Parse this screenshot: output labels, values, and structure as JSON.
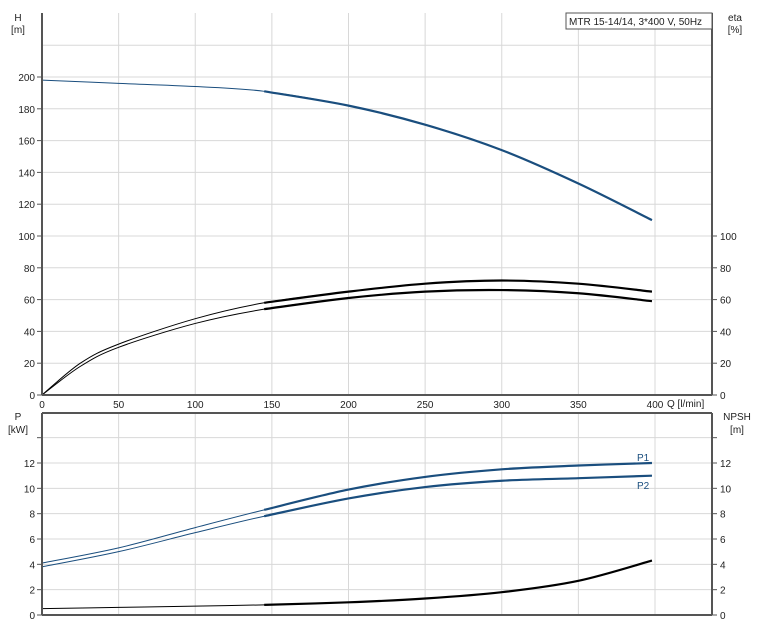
{
  "title_box": "MTR 15-14/14, 3*400 V, 50Hz",
  "colors": {
    "blue": "#1a4e7e",
    "black": "#000000",
    "grid": "#d8d8d8"
  },
  "chart_data": [
    {
      "type": "line",
      "name": "head-efficiency",
      "xlabel": "Q [l/min]",
      "x_ticks": [
        "0",
        "50",
        "100",
        "150",
        "200",
        "250",
        "300",
        "350",
        "400"
      ],
      "xlim": [
        0,
        437
      ],
      "ylabel_left": {
        "name": "H",
        "unit": "[m]"
      },
      "ylabel_right": {
        "name": "eta",
        "unit": "[%]"
      },
      "ylim_left": [
        0,
        240
      ],
      "y_ticks_left": [
        "0",
        "20",
        "40",
        "60",
        "80",
        "100",
        "120",
        "140",
        "160",
        "180",
        "200"
      ],
      "y_ticks_right": [
        "0",
        "20",
        "40",
        "60",
        "80",
        "100"
      ],
      "grid": true,
      "operating_range_start": 145,
      "series": [
        {
          "axis": "left",
          "color": "#1a4e7e",
          "x": [
            0,
            50,
            100,
            145,
            200,
            250,
            300,
            350,
            398
          ],
          "y": [
            198,
            196,
            194,
            191,
            182,
            170,
            154,
            133,
            110
          ]
        },
        {
          "axis": "right",
          "color": "#000000",
          "x": [
            0,
            25,
            50,
            100,
            145,
            200,
            250,
            300,
            350,
            398
          ],
          "y": [
            0,
            20,
            32,
            48,
            58,
            65,
            70,
            72,
            70,
            65
          ]
        },
        {
          "axis": "right",
          "color": "#000000",
          "x": [
            0,
            25,
            50,
            100,
            145,
            200,
            250,
            300,
            350,
            398
          ],
          "y": [
            0,
            18,
            30,
            45,
            54,
            61,
            65,
            66,
            64,
            59
          ]
        }
      ]
    },
    {
      "type": "line",
      "name": "power-npsh",
      "xlim": [
        0,
        437
      ],
      "ylabel_left": {
        "name": "P",
        "unit": "[kW]"
      },
      "ylabel_right": {
        "name": "NPSH",
        "unit": "[m]"
      },
      "ylim": [
        0,
        16
      ],
      "y_ticks": [
        "0",
        "2",
        "4",
        "6",
        "8",
        "10",
        "12"
      ],
      "grid": true,
      "operating_range_start": 145,
      "series": [
        {
          "name": "P1",
          "color": "#1a4e7e",
          "x": [
            0,
            50,
            100,
            145,
            200,
            250,
            300,
            350,
            398
          ],
          "y": [
            4.1,
            5.3,
            6.9,
            8.3,
            9.9,
            10.9,
            11.5,
            11.8,
            12.0
          ]
        },
        {
          "name": "P2",
          "color": "#1a4e7e",
          "x": [
            0,
            50,
            100,
            145,
            200,
            250,
            300,
            350,
            398
          ],
          "y": [
            3.8,
            5.0,
            6.5,
            7.8,
            9.2,
            10.1,
            10.6,
            10.8,
            11.0
          ]
        },
        {
          "color": "#000000",
          "x": [
            0,
            50,
            100,
            145,
            200,
            250,
            300,
            350,
            398
          ],
          "y": [
            0.5,
            0.6,
            0.7,
            0.8,
            1.0,
            1.3,
            1.8,
            2.7,
            4.3
          ]
        }
      ]
    }
  ]
}
